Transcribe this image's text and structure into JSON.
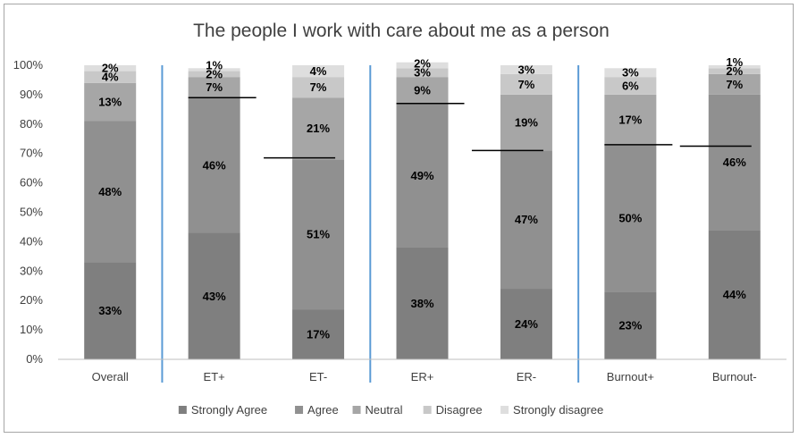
{
  "chart_data": {
    "type": "bar",
    "stacked": true,
    "title": "The people I work with care about me as a person",
    "xlabel": "",
    "ylabel": "",
    "ylim": [
      0,
      100
    ],
    "y_ticks": [
      "0%",
      "10%",
      "20%",
      "30%",
      "40%",
      "50%",
      "60%",
      "70%",
      "80%",
      "90%",
      "100%"
    ],
    "categories": [
      "Overall",
      "ET+",
      "ET-",
      "ER+",
      "ER-",
      "Burnout+",
      "Burnout-"
    ],
    "series": [
      {
        "name": "Strongly Agree",
        "color": "#7f7f7f",
        "values": [
          33,
          43,
          17,
          38,
          24,
          23,
          44
        ],
        "labels": [
          "33%",
          "43%",
          "17%",
          "38%",
          "24%",
          "23%",
          "44%"
        ]
      },
      {
        "name": "Agree",
        "color": "#909090",
        "values": [
          48,
          46,
          51,
          49,
          47,
          50,
          46
        ],
        "labels": [
          "48%",
          "46%",
          "51%",
          "49%",
          "47%",
          "50%",
          "46%"
        ]
      },
      {
        "name": "Neutral",
        "color": "#a6a6a6",
        "values": [
          13,
          7,
          21,
          9,
          19,
          17,
          7
        ],
        "labels": [
          "13%",
          "7%",
          "21%",
          "9%",
          "19%",
          "17%",
          "7%"
        ]
      },
      {
        "name": "Disagree",
        "color": "#c8c8c8",
        "values": [
          4,
          2,
          7,
          3,
          7,
          6,
          2
        ],
        "labels": [
          "4%",
          "2%",
          "7%",
          "3%",
          "7%",
          "6%",
          "2%"
        ]
      },
      {
        "name": "Strongly disagree",
        "color": "#dedede",
        "values": [
          2,
          1,
          4,
          2,
          3,
          3,
          1
        ],
        "labels": [
          "2%",
          "1%",
          "4%",
          "2%",
          "3%",
          "3%",
          "1%"
        ]
      }
    ],
    "reference_lines": [
      {
        "between": [
          "ET+",
          "ET-"
        ],
        "value": 68.5
      },
      {
        "between": [
          "ER+",
          "ER-"
        ],
        "value": 71
      },
      {
        "between": [
          "Burnout+",
          "Burnout-"
        ],
        "value": 72.5
      }
    ],
    "group_separators_after": [
      "Overall",
      "ET-",
      "ER-"
    ],
    "legend_position": "bottom",
    "grid": false
  }
}
